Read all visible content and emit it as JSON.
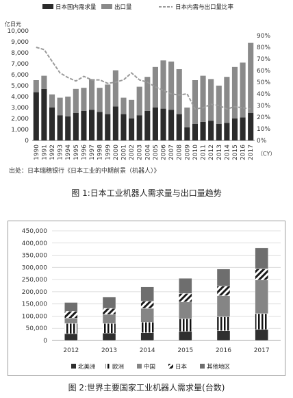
{
  "figures": [
    {
      "caption": "图 1:日本工业机器人需求量与出口量趋势",
      "source_note": "出处：日本瑞穗银行《日本工业的中期前景（机器人）》",
      "left_axis_unit": "亿日元",
      "x_unit": "（CY）",
      "legend": [
        "日本国内需求量",
        "出口量",
        "日本内需与出口量比率"
      ]
    },
    {
      "caption": "图 2:世界主要国家工业机器人需求量(台数)",
      "legend": [
        "北美洲",
        "欧洲",
        "中国",
        "日本",
        "其他地区"
      ]
    }
  ],
  "colors": {
    "domestic": "#2b2b2b",
    "export": "#8a8a8a",
    "ratio": "#9a9a9a",
    "north_america": "#2f2f2f",
    "europe": "#111111",
    "china": "#858585",
    "japan": "#1a1a1a",
    "other": "#6e6e6e"
  },
  "chart_data": [
    {
      "type": "bar",
      "stacked": true,
      "categories": [
        "1990",
        "1991",
        "1992",
        "1993",
        "1994",
        "1995",
        "1996",
        "1997",
        "1998",
        "1999",
        "2000",
        "2001",
        "2002",
        "2003",
        "2004",
        "2005",
        "2006",
        "2007",
        "2008",
        "2009",
        "2010",
        "2011",
        "2012",
        "2013",
        "2014",
        "2015",
        "2016",
        "2017"
      ],
      "series": [
        {
          "name": "日本国内需求量",
          "values": [
            4400,
            4700,
            3000,
            2300,
            2200,
            2500,
            2700,
            2800,
            2600,
            2400,
            3100,
            2400,
            2000,
            2300,
            2700,
            3000,
            2900,
            2800,
            2400,
            1200,
            1500,
            1700,
            1800,
            1500,
            1600,
            2000,
            2100,
            2500
          ]
        },
        {
          "name": "出口量",
          "values": [
            1100,
            1200,
            1200,
            1600,
            1800,
            2200,
            2100,
            2800,
            2200,
            2700,
            3300,
            1500,
            1700,
            2600,
            3100,
            3700,
            4400,
            4400,
            4100,
            1800,
            4000,
            4200,
            3800,
            3500,
            4200,
            4700,
            5000,
            6400
          ]
        },
        {
          "name": "日本内需与出口量比率",
          "axis": "right",
          "values": [
            80,
            78,
            68,
            58,
            54,
            51,
            55,
            52,
            52,
            49,
            50,
            52,
            58,
            52,
            50,
            46,
            43,
            40,
            39,
            40,
            27,
            28,
            31,
            30,
            27,
            29,
            28,
            27
          ]
        }
      ],
      "ylim": [
        0,
        10000
      ],
      "yticks": [
        "0",
        "1,000",
        "2,000",
        "3,000",
        "4,000",
        "5,000",
        "6,000",
        "7,000",
        "8,000",
        "9,000",
        "10,000"
      ],
      "y2lim": [
        0,
        90
      ],
      "y2ticks": [
        "0%",
        "10%",
        "20%",
        "30%",
        "40%",
        "50%",
        "60%",
        "70%",
        "80%",
        "90%"
      ],
      "grid": false,
      "legend_position": "top"
    },
    {
      "type": "bar",
      "stacked": true,
      "categories": [
        "2012",
        "2013",
        "2014",
        "2015",
        "2016",
        "2017"
      ],
      "series": [
        {
          "name": "北美洲",
          "values": [
            28000,
            30000,
            32000,
            37000,
            40000,
            45000
          ]
        },
        {
          "name": "欧洲",
          "values": [
            42000,
            40000,
            43000,
            52000,
            57000,
            65000
          ]
        },
        {
          "name": "中国",
          "values": [
            22000,
            37000,
            57000,
            69000,
            87000,
            138000
          ]
        },
        {
          "name": "日本",
          "values": [
            28000,
            25000,
            29000,
            35000,
            39000,
            46000
          ]
        },
        {
          "name": "其他地区",
          "values": [
            36000,
            46000,
            59000,
            62000,
            70000,
            86000
          ]
        }
      ],
      "ylim": [
        0,
        450000
      ],
      "yticks": [
        "0",
        "50,000",
        "100,000",
        "150,000",
        "200,000",
        "250,000",
        "300,000",
        "350,000",
        "400,000",
        "450,000"
      ],
      "grid": true,
      "legend_position": "bottom"
    }
  ]
}
